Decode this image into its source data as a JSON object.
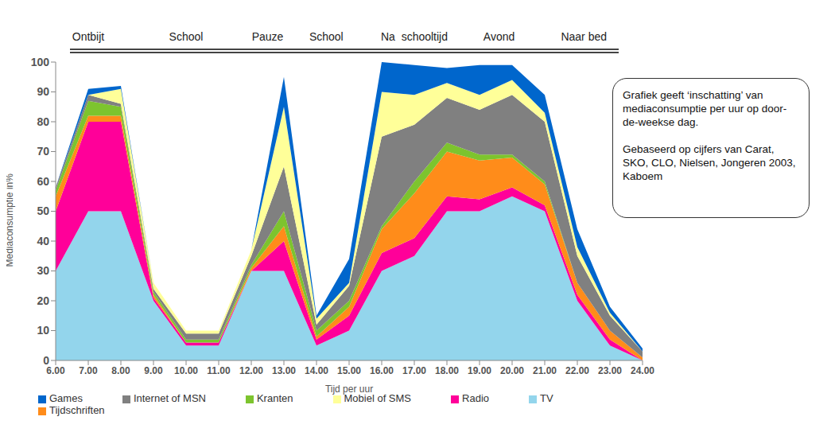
{
  "chart_data": {
    "type": "area",
    "stacked": true,
    "x_label": "Tijd per uur",
    "y_label": "Mediaconsumptie in%",
    "x": [
      6,
      7,
      8,
      9,
      10,
      11,
      12,
      13,
      14,
      15,
      16,
      17,
      18,
      19,
      20,
      21,
      22,
      23,
      24
    ],
    "xlim": [
      6,
      24
    ],
    "xticks": [
      {
        "value": 6,
        "label": "6.00"
      },
      {
        "value": 7,
        "label": "7.00"
      },
      {
        "value": 8,
        "label": "8.00"
      },
      {
        "value": 9,
        "label": "9.00"
      },
      {
        "value": 10,
        "label": "10.00"
      },
      {
        "value": 11,
        "label": "11.00"
      },
      {
        "value": 12,
        "label": "12.00"
      },
      {
        "value": 13,
        "label": "13.00"
      },
      {
        "value": 14,
        "label": "14.00"
      },
      {
        "value": 15,
        "label": "15.00"
      },
      {
        "value": 16,
        "label": "16.00"
      },
      {
        "value": 17,
        "label": "17.00"
      },
      {
        "value": 18,
        "label": "18.00"
      },
      {
        "value": 19,
        "label": "19.00"
      },
      {
        "value": 20,
        "label": "20.00"
      },
      {
        "value": 21,
        "label": "21.00"
      },
      {
        "value": 22,
        "label": "22.00"
      },
      {
        "value": 23,
        "label": "23.00"
      },
      {
        "value": 24,
        "label": "24.00"
      }
    ],
    "ylim": [
      0,
      100
    ],
    "yticks": [
      0,
      10,
      20,
      30,
      40,
      50,
      60,
      70,
      80,
      90,
      100
    ],
    "legend": "bottom",
    "series": [
      {
        "name": "TV",
        "color": "#93d5ec",
        "values": [
          30,
          50,
          50,
          20,
          5,
          5,
          30,
          30,
          5,
          10,
          30,
          35,
          50,
          50,
          55,
          50,
          20,
          5,
          0
        ]
      },
      {
        "name": "Radio",
        "color": "#ff0099",
        "values": [
          20,
          30,
          30,
          1,
          1,
          1,
          0,
          10,
          2,
          5,
          6,
          6,
          5,
          4,
          3,
          2,
          2,
          2,
          0
        ]
      },
      {
        "name": "Tijdschriften",
        "color": "#ff8c1a",
        "values": [
          5,
          2,
          2,
          1,
          0,
          0,
          1,
          5,
          1,
          3,
          8,
          15,
          15,
          13,
          10,
          7,
          4,
          3,
          1
        ]
      },
      {
        "name": "Kranten",
        "color": "#7dc42e",
        "values": [
          2,
          5,
          3,
          1,
          1,
          1,
          1,
          5,
          2,
          2,
          1,
          4,
          3,
          2,
          1,
          1,
          0,
          0,
          0
        ]
      },
      {
        "name": "Internet of MSN",
        "color": "#808080",
        "values": [
          1,
          2,
          1,
          1,
          2,
          2,
          3,
          15,
          2,
          5,
          30,
          19,
          15,
          15,
          20,
          20,
          9,
          5,
          2
        ]
      },
      {
        "name": "Mobiel of SMS",
        "color": "#ffff99",
        "values": [
          0,
          0,
          5,
          2,
          1,
          1,
          2,
          20,
          2,
          1,
          15,
          10,
          5,
          5,
          5,
          3,
          3,
          1,
          0
        ]
      },
      {
        "name": "Games",
        "color": "#0066cc",
        "values": [
          0,
          2,
          1,
          0,
          0,
          0,
          0,
          10,
          1,
          8,
          10,
          10,
          5,
          10,
          5,
          6,
          6,
          2,
          1
        ]
      }
    ],
    "annotations": [
      {
        "text": "Ontbijt",
        "x": 7
      },
      {
        "text": "School",
        "x": 10
      },
      {
        "text": "Pauze",
        "x": 12.5
      },
      {
        "text": "School",
        "x": 14.3
      },
      {
        "text": "Na  schooltijd",
        "x": 17
      },
      {
        "text": "Avond",
        "x": 19.6
      },
      {
        "text": "Naar bed",
        "x": 22.2
      }
    ],
    "text_box": [
      "Grafiek geeft  ‘inschatting’ van mediaconsumptie per uur op door-de-weekse dag.",
      "Gebaseerd op cijfers van Carat, SKO, CLO, Nielsen, Jongeren 2003, Kaboem"
    ]
  }
}
